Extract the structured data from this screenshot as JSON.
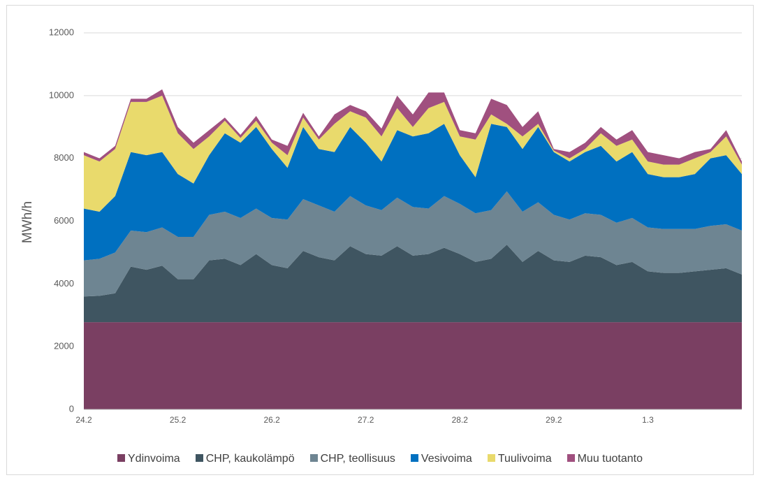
{
  "chart_data": {
    "type": "stacked-area",
    "ylabel": "MWh/h",
    "categories": [
      "24.2",
      null,
      null,
      null,
      null,
      null,
      "25.2",
      null,
      null,
      null,
      null,
      null,
      "26.2",
      null,
      null,
      null,
      null,
      null,
      "27.2",
      null,
      null,
      null,
      null,
      null,
      "28.2",
      null,
      null,
      null,
      null,
      null,
      "29.2",
      null,
      null,
      null,
      null,
      null,
      "1.3",
      null,
      null,
      null,
      null,
      null,
      null
    ],
    "ylim": [
      0,
      12000
    ],
    "yticks": [
      0,
      2000,
      4000,
      6000,
      8000,
      10000,
      12000
    ],
    "grid": true,
    "series": [
      {
        "name": "Ydinvoima",
        "color": "#7a3f62",
        "values": [
          2780,
          2780,
          2780,
          2780,
          2780,
          2780,
          2780,
          2780,
          2780,
          2780,
          2780,
          2780,
          2780,
          2780,
          2780,
          2780,
          2780,
          2780,
          2780,
          2780,
          2780,
          2780,
          2780,
          2780,
          2780,
          2780,
          2780,
          2780,
          2780,
          2780,
          2780,
          2780,
          2780,
          2780,
          2780,
          2780,
          2780,
          2780,
          2780,
          2780,
          2780,
          2780,
          2780
        ]
      },
      {
        "name": "CHP, kaukolämpö",
        "color": "#3f5561",
        "values": [
          820,
          840,
          920,
          1770,
          1670,
          1800,
          1370,
          1370,
          1970,
          2020,
          1820,
          2170,
          1820,
          1720,
          2270,
          2070,
          1970,
          2420,
          2170,
          2120,
          2420,
          2120,
          2170,
          2370,
          2170,
          1920,
          2020,
          2470,
          1920,
          2270,
          1970,
          1920,
          2120,
          2070,
          1820,
          1920,
          1620,
          1570,
          1570,
          1620,
          1670,
          1720,
          1520
        ]
      },
      {
        "name": "CHP, teollisuus",
        "color": "#6e8592",
        "values": [
          1150,
          1180,
          1300,
          1150,
          1200,
          1220,
          1350,
          1350,
          1450,
          1500,
          1500,
          1450,
          1500,
          1550,
          1650,
          1650,
          1550,
          1600,
          1550,
          1450,
          1550,
          1550,
          1450,
          1650,
          1600,
          1550,
          1550,
          1700,
          1600,
          1550,
          1450,
          1350,
          1350,
          1350,
          1350,
          1400,
          1400,
          1400,
          1400,
          1350,
          1400,
          1400,
          1400
        ]
      },
      {
        "name": "Vesivoima",
        "color": "#0070c0",
        "values": [
          1650,
          1500,
          1800,
          2500,
          2450,
          2400,
          2000,
          1700,
          1900,
          2500,
          2400,
          2600,
          2200,
          1650,
          2300,
          1800,
          1900,
          2200,
          2000,
          1550,
          2150,
          2250,
          2400,
          2300,
          1550,
          1150,
          2750,
          2050,
          2000,
          2400,
          2000,
          1850,
          1950,
          2200,
          1950,
          2100,
          1700,
          1650,
          1650,
          1750,
          2150,
          2200,
          1800
        ]
      },
      {
        "name": "Tuulivoima",
        "color": "#e9da6c",
        "values": [
          1700,
          1600,
          1500,
          1600,
          1700,
          1800,
          1300,
          1100,
          600,
          400,
          150,
          200,
          200,
          400,
          300,
          300,
          900,
          500,
          800,
          800,
          700,
          300,
          800,
          700,
          600,
          1200,
          300,
          100,
          400,
          100,
          50,
          100,
          100,
          400,
          500,
          400,
          400,
          400,
          400,
          500,
          200,
          600,
          300
        ]
      },
      {
        "name": "Muu tuotanto",
        "color": "#a0507f",
        "values": [
          100,
          100,
          100,
          100,
          100,
          200,
          200,
          200,
          200,
          100,
          100,
          150,
          100,
          300,
          150,
          100,
          300,
          200,
          200,
          250,
          400,
          400,
          500,
          300,
          200,
          200,
          500,
          600,
          300,
          400,
          50,
          200,
          200,
          200,
          200,
          300,
          300,
          300,
          200,
          200,
          100,
          200,
          100
        ]
      }
    ]
  }
}
